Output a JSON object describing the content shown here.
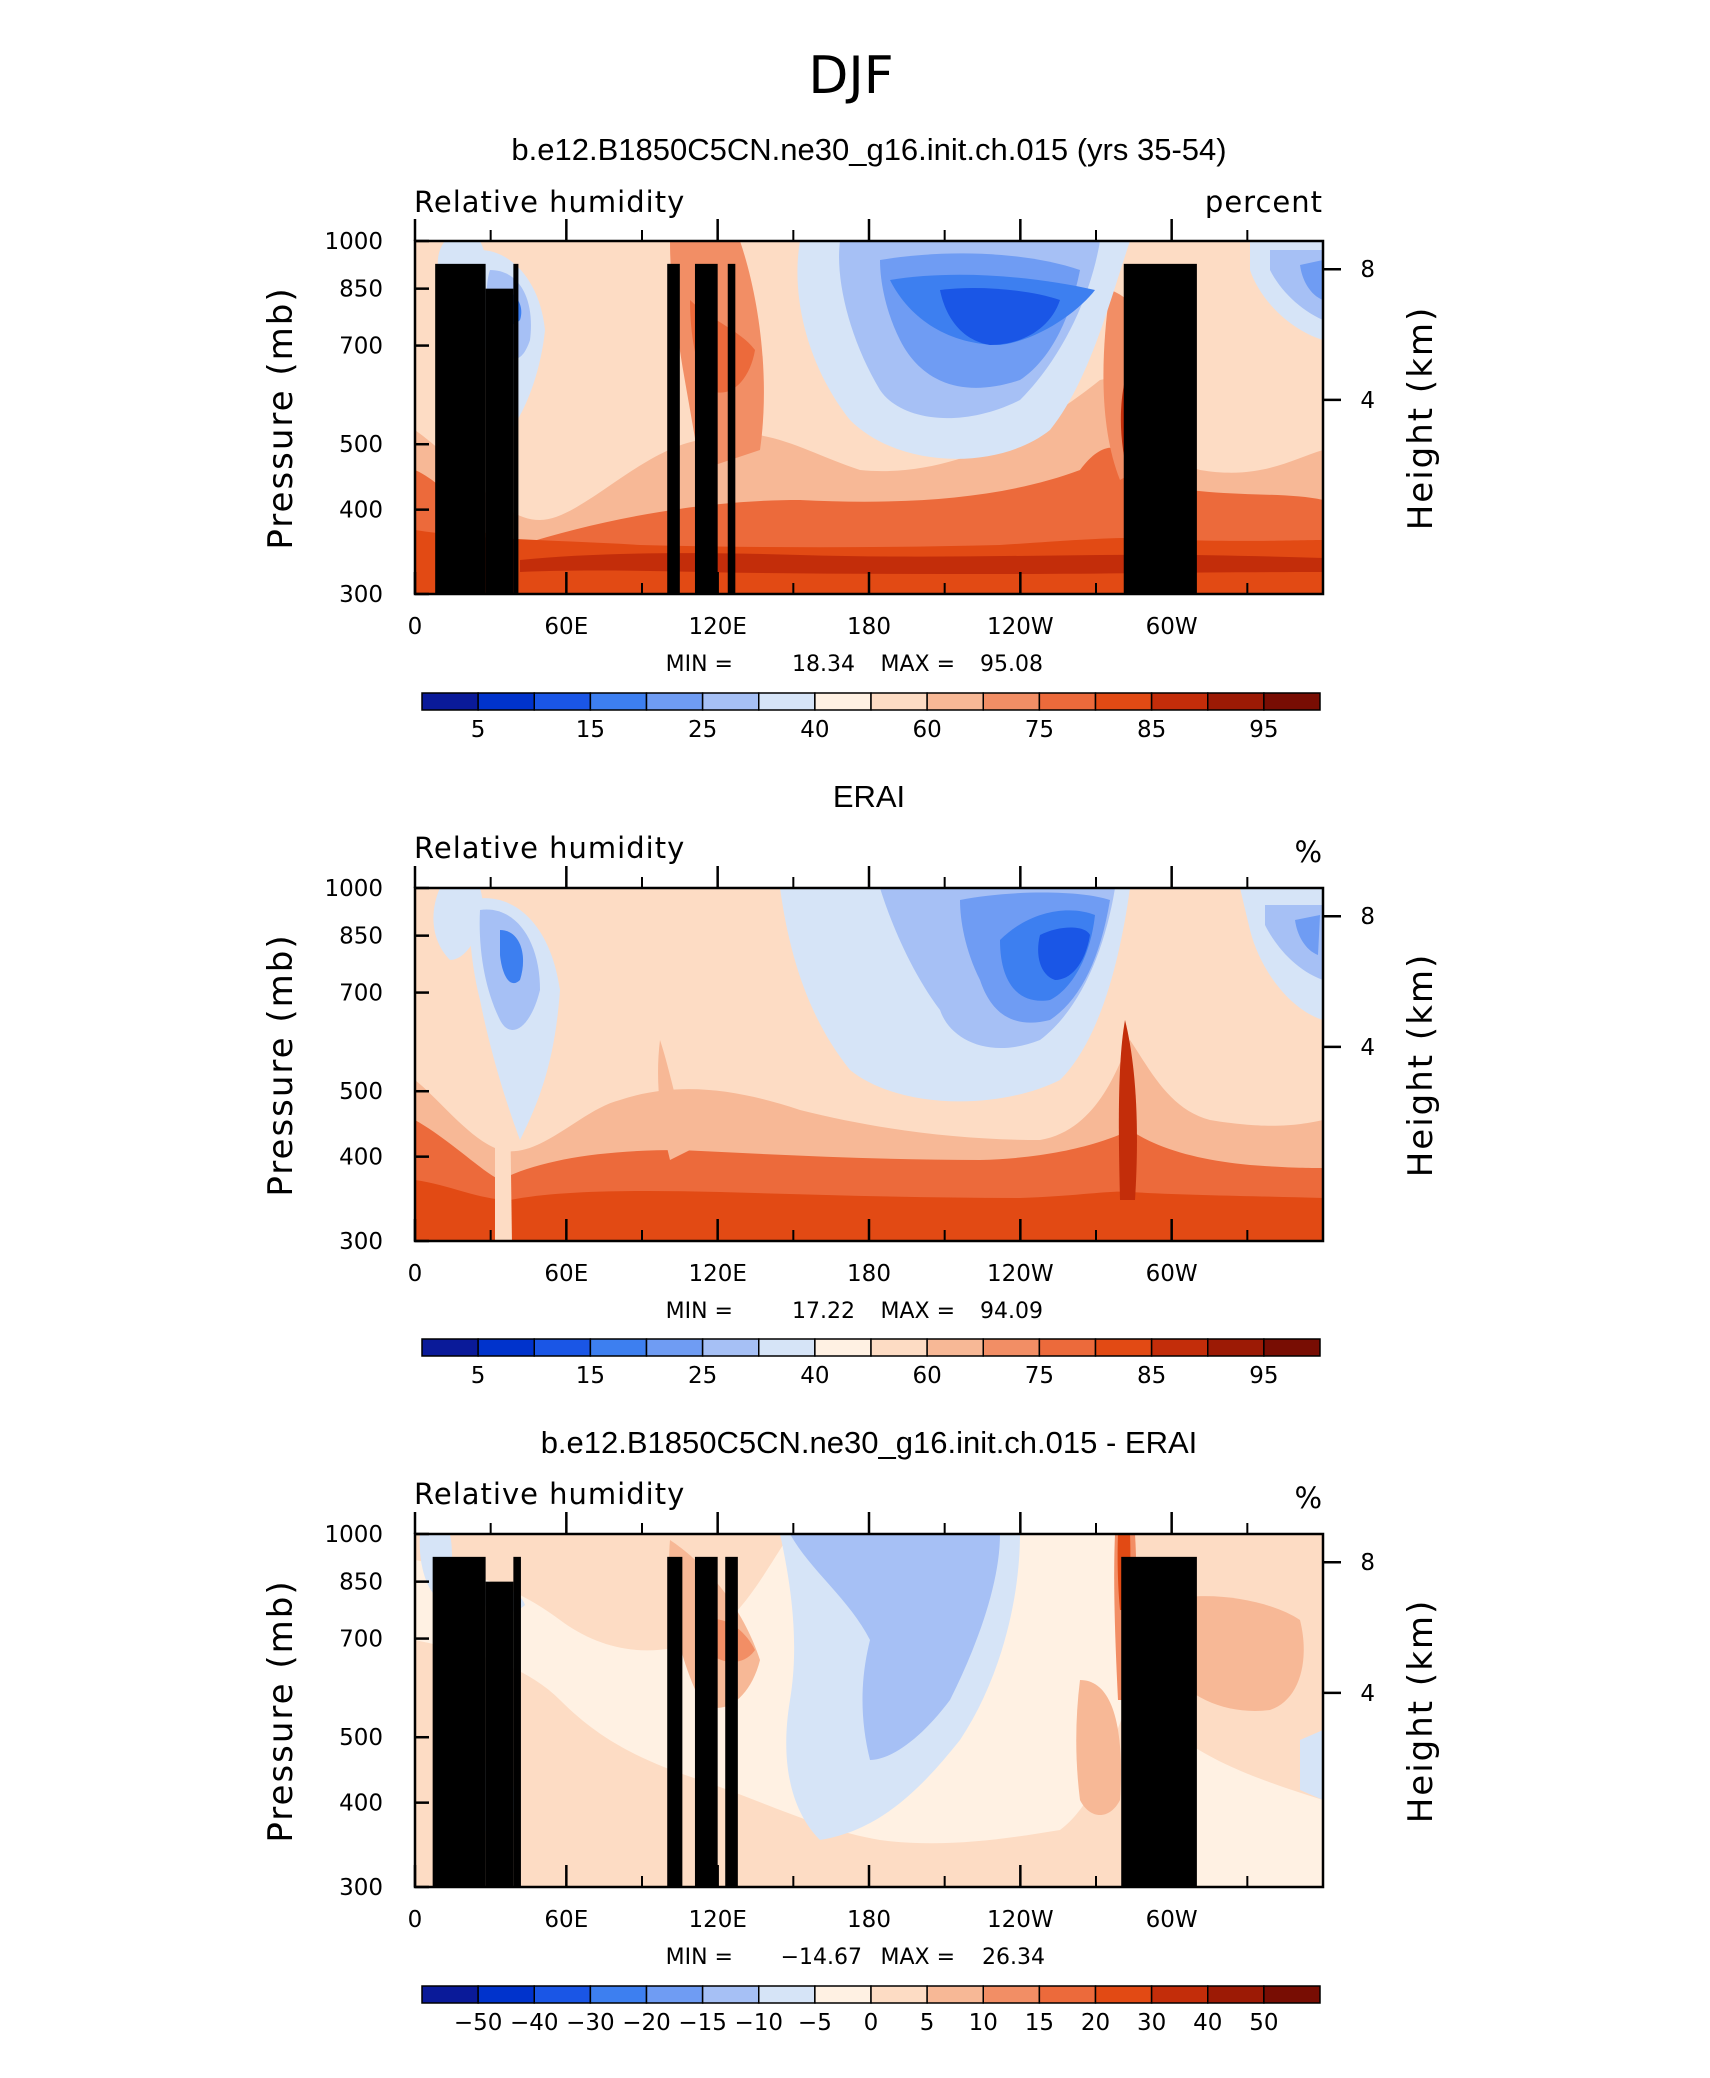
{
  "figure": {
    "title": "DJF",
    "colors": {
      "rh_colormap": [
        "#0a1a99",
        "#0033cc",
        "#1a56e6",
        "#3d7ff0",
        "#6f9cf3",
        "#a6c0f5",
        "#d6e4f7",
        "#fff1e3",
        "#fddcc4",
        "#f7b896",
        "#f28e65",
        "#ec6a3b",
        "#e24a14",
        "#c32d0a",
        "#9c1a05",
        "#780d03"
      ],
      "land_mask": "#000000"
    }
  },
  "chart_data": [
    {
      "type": "heatmap",
      "title": "b.e12.B1850C5CN.ne30_g16.init.ch.015 (yrs 35-54)",
      "left_label": "Relative humidity",
      "right_label": "percent",
      "ylabel": "Pressure (mb)",
      "ylabel_right": "Height (km)",
      "x_ticks": [
        "0",
        "60E",
        "120E",
        "180",
        "120W",
        "60W"
      ],
      "x_tick_values": [
        0,
        60,
        120,
        180,
        240,
        300
      ],
      "xlim": [
        0,
        360
      ],
      "y_ticks": [
        "300",
        "400",
        "500",
        "700",
        "850",
        "1000"
      ],
      "y_tick_values": [
        300,
        400,
        500,
        700,
        850,
        1000
      ],
      "ylim": [
        1000,
        300
      ],
      "y_right_ticks": [
        "8",
        "4"
      ],
      "y_right_tick_values": [
        8,
        4
      ],
      "stats": {
        "min_label": "MIN =",
        "min": "18.34",
        "max_label": "MAX =",
        "max": "95.08"
      },
      "colorbar_ticks": [
        "5",
        "15",
        "25",
        "40",
        "60",
        "75",
        "85",
        "95"
      ],
      "colorbar_boundaries": [
        5,
        10,
        15,
        20,
        25,
        30,
        40,
        50,
        60,
        70,
        75,
        80,
        85,
        90,
        95
      ],
      "topography": [
        [
          8,
          28,
          925
        ],
        [
          28,
          39,
          850
        ],
        [
          39,
          41,
          925
        ],
        [
          100,
          105,
          925
        ],
        [
          111,
          120,
          925
        ],
        [
          124,
          127,
          925
        ],
        [
          281,
          310,
          925
        ]
      ]
    },
    {
      "type": "heatmap",
      "title": "ERAI",
      "left_label": "Relative humidity",
      "right_label": "%",
      "ylabel": "Pressure (mb)",
      "ylabel_right": "Height (km)",
      "x_ticks": [
        "0",
        "60E",
        "120E",
        "180",
        "120W",
        "60W"
      ],
      "x_tick_values": [
        0,
        60,
        120,
        180,
        240,
        300
      ],
      "xlim": [
        0,
        360
      ],
      "y_ticks": [
        "300",
        "400",
        "500",
        "700",
        "850",
        "1000"
      ],
      "y_tick_values": [
        300,
        400,
        500,
        700,
        850,
        1000
      ],
      "ylim": [
        1000,
        300
      ],
      "y_right_ticks": [
        "8",
        "4"
      ],
      "y_right_tick_values": [
        8,
        4
      ],
      "stats": {
        "min_label": "MIN =",
        "min": "17.22",
        "max_label": "MAX =",
        "max": "94.09"
      },
      "colorbar_ticks": [
        "5",
        "15",
        "25",
        "40",
        "60",
        "75",
        "85",
        "95"
      ],
      "colorbar_boundaries": [
        5,
        10,
        15,
        20,
        25,
        30,
        40,
        50,
        60,
        70,
        75,
        80,
        85,
        90,
        95
      ],
      "topography": []
    },
    {
      "type": "heatmap",
      "title": "b.e12.B1850C5CN.ne30_g16.init.ch.015 - ERAI",
      "left_label": "Relative humidity",
      "right_label": "%",
      "ylabel": "Pressure (mb)",
      "ylabel_right": "Height (km)",
      "x_ticks": [
        "0",
        "60E",
        "120E",
        "180",
        "120W",
        "60W"
      ],
      "x_tick_values": [
        0,
        60,
        120,
        180,
        240,
        300
      ],
      "xlim": [
        0,
        360
      ],
      "y_ticks": [
        "300",
        "400",
        "500",
        "700",
        "850",
        "1000"
      ],
      "y_tick_values": [
        300,
        400,
        500,
        700,
        850,
        1000
      ],
      "ylim": [
        1000,
        300
      ],
      "y_right_ticks": [
        "8",
        "4"
      ],
      "y_right_tick_values": [
        8,
        4
      ],
      "stats": {
        "min_label": "MIN =",
        "min": "−14.67",
        "max_label": "MAX =",
        "max": "26.34"
      },
      "colorbar_ticks": [
        "−50",
        "−40",
        "−30",
        "−20",
        "−15",
        "−10",
        "−5",
        "0",
        "5",
        "10",
        "15",
        "20",
        "30",
        "40",
        "50"
      ],
      "colorbar_boundaries": [
        -50,
        -40,
        -30,
        -20,
        -15,
        -10,
        -5,
        0,
        5,
        10,
        15,
        20,
        30,
        40,
        50
      ],
      "topography": [
        [
          7,
          28,
          925
        ],
        [
          28,
          39,
          850
        ],
        [
          39,
          42,
          925
        ],
        [
          100,
          106,
          925
        ],
        [
          111,
          120,
          925
        ],
        [
          123,
          128,
          925
        ],
        [
          280,
          310,
          925
        ]
      ]
    }
  ]
}
